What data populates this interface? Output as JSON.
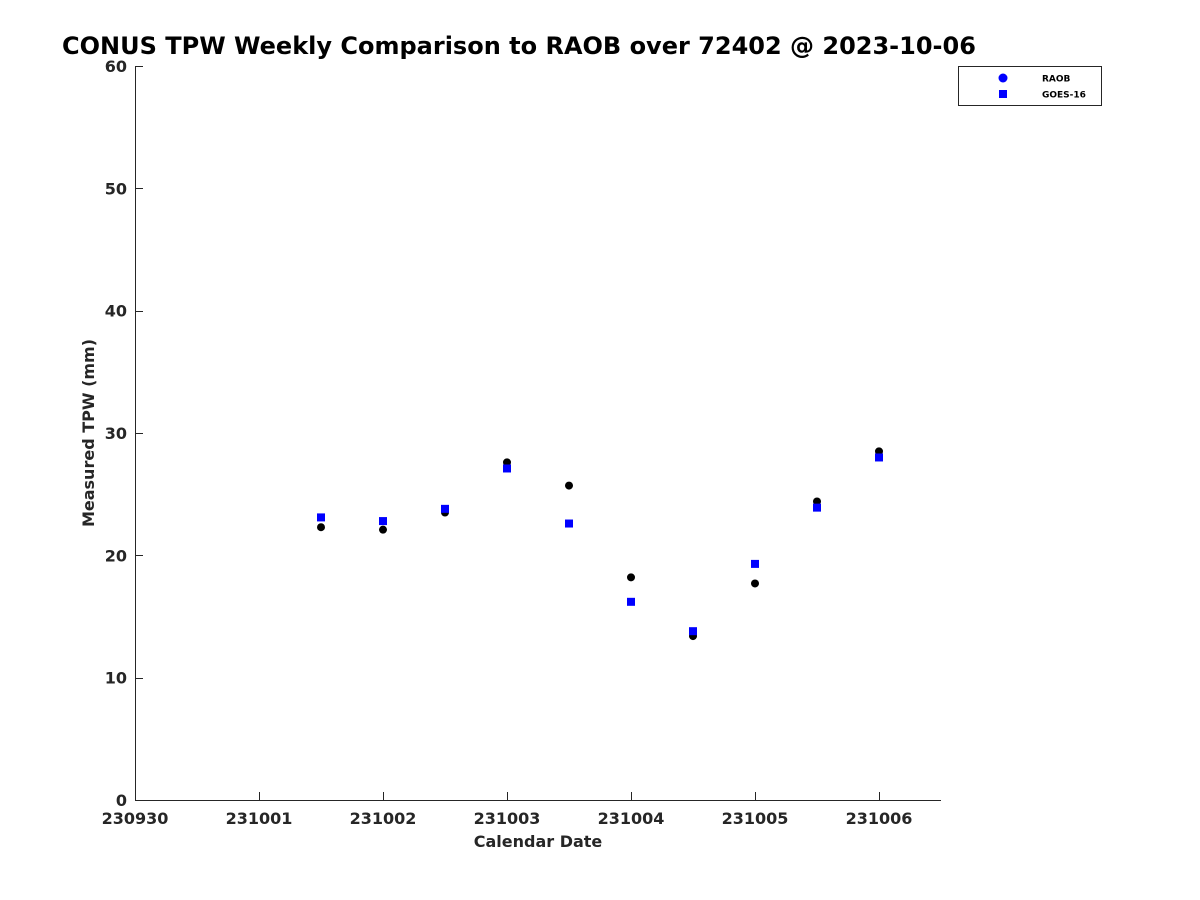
{
  "chart_data": {
    "type": "scatter",
    "title": "CONUS TPW Weekly Comparison to RAOB over 72402 @ 2023-10-06",
    "xlabel": "Calendar Date",
    "ylabel": "Measured TPW (mm)",
    "xlim": [
      0,
      6.5
    ],
    "ylim": [
      0,
      60
    ],
    "x_tick_values": [
      0,
      1,
      2,
      3,
      4,
      5,
      6
    ],
    "x_tick_labels": [
      "230930",
      "231001",
      "231002",
      "231003",
      "231004",
      "231005",
      "231006"
    ],
    "y_ticks": [
      0,
      10,
      20,
      30,
      40,
      50,
      60
    ],
    "grid": false,
    "legend_position": "top-right",
    "series": [
      {
        "name": "RAOB",
        "marker": "circle",
        "color": "#000000",
        "legend_color": "#0000ff",
        "x": [
          1.5,
          2.0,
          2.5,
          3.0,
          3.5,
          4.0,
          4.5,
          5.0,
          5.5,
          6.0
        ],
        "y": [
          22.3,
          22.1,
          23.5,
          27.6,
          25.7,
          18.2,
          13.4,
          17.7,
          24.4,
          28.5
        ]
      },
      {
        "name": "GOES-16",
        "marker": "square",
        "color": "#0000ff",
        "legend_color": "#0000ff",
        "x": [
          1.5,
          2.0,
          2.5,
          3.0,
          3.5,
          4.0,
          4.5,
          5.0,
          5.5,
          6.0
        ],
        "y": [
          23.1,
          22.8,
          23.8,
          27.1,
          22.6,
          16.2,
          13.8,
          19.3,
          23.9,
          28.0
        ]
      }
    ]
  }
}
